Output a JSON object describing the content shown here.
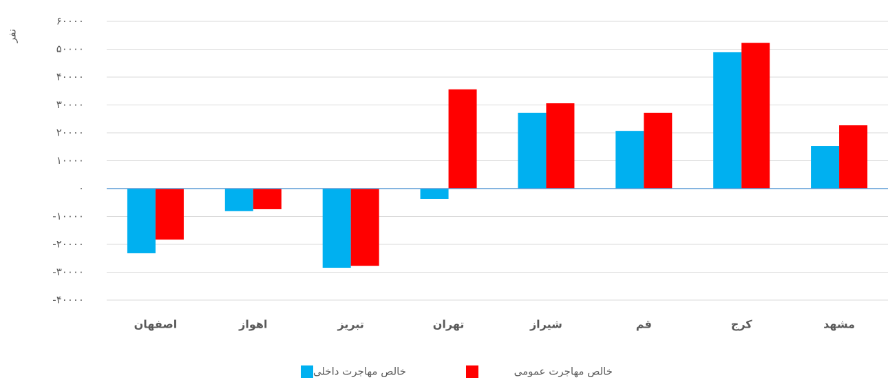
{
  "chart_data": {
    "type": "bar",
    "y_label": "نفر",
    "categories": [
      "اصفهان",
      "اهواز",
      "تبریز",
      "تهران",
      "شیراز",
      "قم",
      "کرج",
      "مشهد"
    ],
    "series": [
      {
        "name": "خالص مهاجرت داخلی",
        "color": "#00b0f0",
        "values": [
          -23200,
          -8100,
          -28400,
          -3700,
          27200,
          20700,
          48900,
          15300
        ]
      },
      {
        "name": "خالص مهاجرت عمومی",
        "color": "#ff0000",
        "values": [
          -18300,
          -7400,
          -27700,
          35600,
          30600,
          27200,
          52300,
          22700
        ]
      }
    ],
    "ylim": [
      -40000,
      60000
    ],
    "yticks": [
      {
        "value": -40000,
        "label": "-۴۰۰۰۰"
      },
      {
        "value": -30000,
        "label": "-۳۰۰۰۰"
      },
      {
        "value": -20000,
        "label": "-۲۰۰۰۰"
      },
      {
        "value": -10000,
        "label": "-۱۰۰۰۰"
      },
      {
        "value": 0,
        "label": "۰"
      },
      {
        "value": 10000,
        "label": "۱۰۰۰۰"
      },
      {
        "value": 20000,
        "label": "۲۰۰۰۰"
      },
      {
        "value": 30000,
        "label": "۳۰۰۰۰"
      },
      {
        "value": 40000,
        "label": "۴۰۰۰۰"
      },
      {
        "value": 50000,
        "label": "۵۰۰۰۰"
      },
      {
        "value": 60000,
        "label": "۶۰۰۰۰"
      }
    ],
    "grid": true,
    "legend": "bottom"
  }
}
